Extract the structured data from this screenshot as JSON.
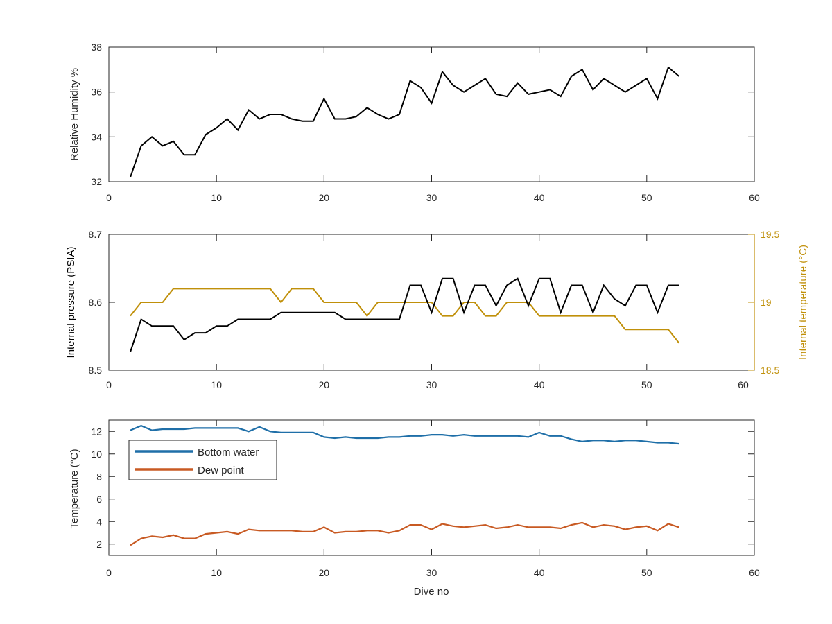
{
  "colors": {
    "axes": "#262626",
    "relative_humidity": "#000000",
    "internal_pressure": "#000000",
    "internal_temperature": "#c0900a",
    "bottom_water": "#1f6fa8",
    "dew_point": "#c85a23"
  },
  "chart_data": [
    {
      "type": "line",
      "xlabel": "",
      "ylabel": "Relative Humidity %",
      "xlim": [
        0,
        60
      ],
      "ylim": [
        32,
        38
      ],
      "xticks": [
        "0",
        "10",
        "20",
        "30",
        "40",
        "50",
        "60"
      ],
      "yticks": [
        "32",
        "34",
        "36",
        "38"
      ],
      "grid": false,
      "series": [
        {
          "color_key": "relative_humidity",
          "x": [
            2,
            3,
            4,
            5,
            6,
            7,
            8,
            9,
            10,
            11,
            12,
            13,
            14,
            15,
            16,
            17,
            18,
            19,
            20,
            21,
            22,
            23,
            24,
            25,
            26,
            27,
            28,
            29,
            30,
            31,
            32,
            33,
            34,
            35,
            36,
            37,
            38,
            39,
            40,
            41,
            42,
            43,
            44,
            45,
            46,
            47,
            48,
            49,
            50,
            51,
            52,
            53
          ],
          "y": [
            32.2,
            33.6,
            34.0,
            33.6,
            33.8,
            33.2,
            33.2,
            34.1,
            34.4,
            34.8,
            34.3,
            35.2,
            34.8,
            35.0,
            35.0,
            34.8,
            34.7,
            34.7,
            35.7,
            34.8,
            34.8,
            34.9,
            35.3,
            35.0,
            34.8,
            35.0,
            36.5,
            36.2,
            35.5,
            36.9,
            36.3,
            36.0,
            36.3,
            36.6,
            35.9,
            35.8,
            36.4,
            35.9,
            36.0,
            36.1,
            35.8,
            36.7,
            37.0,
            36.1,
            36.6,
            36.3,
            36.0,
            36.3,
            36.6,
            35.7,
            37.1,
            36.7
          ]
        }
      ]
    },
    {
      "type": "line",
      "xlabel": "",
      "ylabel": "Internal pressure (PSIA)",
      "y2label": "Internal temperature (°C)",
      "xlim": [
        0,
        60
      ],
      "ylim": [
        8.5,
        8.7
      ],
      "y2lim": [
        18.5,
        19.5
      ],
      "xticks": [
        "0",
        "10",
        "20",
        "30",
        "40",
        "50",
        "60"
      ],
      "yticks": [
        "8.5",
        "8.6",
        "8.7"
      ],
      "y2ticks": [
        "18.5",
        "19",
        "19.5"
      ],
      "grid": false,
      "series": [
        {
          "axis": "left",
          "color_key": "internal_pressure",
          "x": [
            2,
            3,
            4,
            5,
            6,
            7,
            8,
            9,
            10,
            11,
            12,
            13,
            14,
            15,
            16,
            17,
            18,
            19,
            20,
            21,
            22,
            23,
            24,
            25,
            26,
            27,
            28,
            29,
            30,
            31,
            32,
            33,
            34,
            35,
            36,
            37,
            38,
            39,
            40,
            41,
            42,
            43,
            44,
            45,
            46,
            47,
            48,
            49,
            50,
            51,
            52,
            53
          ],
          "y": [
            8.527,
            8.575,
            8.565,
            8.565,
            8.565,
            8.545,
            8.555,
            8.555,
            8.565,
            8.565,
            8.575,
            8.575,
            8.575,
            8.575,
            8.585,
            8.585,
            8.585,
            8.585,
            8.585,
            8.585,
            8.575,
            8.575,
            8.575,
            8.575,
            8.575,
            8.575,
            8.625,
            8.625,
            8.585,
            8.635,
            8.635,
            8.585,
            8.625,
            8.625,
            8.595,
            8.625,
            8.635,
            8.595,
            8.635,
            8.635,
            8.585,
            8.625,
            8.625,
            8.585,
            8.625,
            8.605,
            8.595,
            8.625,
            8.625,
            8.585,
            8.625,
            8.625
          ]
        },
        {
          "axis": "right",
          "color_key": "internal_temperature",
          "x": [
            2,
            3,
            4,
            5,
            6,
            7,
            8,
            9,
            10,
            11,
            12,
            13,
            14,
            15,
            16,
            17,
            18,
            19,
            20,
            21,
            22,
            23,
            24,
            25,
            26,
            27,
            28,
            29,
            30,
            31,
            32,
            33,
            34,
            35,
            36,
            37,
            38,
            39,
            40,
            41,
            42,
            43,
            44,
            45,
            46,
            47,
            48,
            49,
            50,
            51,
            52,
            53
          ],
          "y": [
            18.9,
            19.0,
            19.0,
            19.0,
            19.1,
            19.1,
            19.1,
            19.1,
            19.1,
            19.1,
            19.1,
            19.1,
            19.1,
            19.1,
            19.0,
            19.1,
            19.1,
            19.1,
            19.0,
            19.0,
            19.0,
            19.0,
            18.9,
            19.0,
            19.0,
            19.0,
            19.0,
            19.0,
            19.0,
            18.9,
            18.9,
            19.0,
            19.0,
            18.9,
            18.9,
            19.0,
            19.0,
            19.0,
            18.9,
            18.9,
            18.9,
            18.9,
            18.9,
            18.9,
            18.9,
            18.9,
            18.8,
            18.8,
            18.8,
            18.8,
            18.8,
            18.7
          ]
        }
      ]
    },
    {
      "type": "line",
      "xlabel": "Dive no",
      "ylabel": "Temperature (°C)",
      "xlim": [
        0,
        60
      ],
      "ylim": [
        1,
        13
      ],
      "xticks": [
        "0",
        "10",
        "20",
        "30",
        "40",
        "50",
        "60"
      ],
      "yticks": [
        "2",
        "4",
        "6",
        "8",
        "10",
        "12"
      ],
      "grid": false,
      "legend": "top-left",
      "series": [
        {
          "name": "Bottom water",
          "color_key": "bottom_water",
          "x": [
            2,
            3,
            4,
            5,
            6,
            7,
            8,
            9,
            10,
            11,
            12,
            13,
            14,
            15,
            16,
            17,
            18,
            19,
            20,
            21,
            22,
            23,
            24,
            25,
            26,
            27,
            28,
            29,
            30,
            31,
            32,
            33,
            34,
            35,
            36,
            37,
            38,
            39,
            40,
            41,
            42,
            43,
            44,
            45,
            46,
            47,
            48,
            49,
            50,
            51,
            52,
            53
          ],
          "y": [
            12.1,
            12.5,
            12.1,
            12.2,
            12.2,
            12.2,
            12.3,
            12.3,
            12.3,
            12.3,
            12.3,
            12.0,
            12.4,
            12.0,
            11.9,
            11.9,
            11.9,
            11.9,
            11.5,
            11.4,
            11.5,
            11.4,
            11.4,
            11.4,
            11.5,
            11.5,
            11.6,
            11.6,
            11.7,
            11.7,
            11.6,
            11.7,
            11.6,
            11.6,
            11.6,
            11.6,
            11.6,
            11.5,
            11.9,
            11.6,
            11.6,
            11.3,
            11.1,
            11.2,
            11.2,
            11.1,
            11.2,
            11.2,
            11.1,
            11.0,
            11.0,
            10.9
          ]
        },
        {
          "name": "Dew point",
          "color_key": "dew_point",
          "x": [
            2,
            3,
            4,
            5,
            6,
            7,
            8,
            9,
            10,
            11,
            12,
            13,
            14,
            15,
            16,
            17,
            18,
            19,
            20,
            21,
            22,
            23,
            24,
            25,
            26,
            27,
            28,
            29,
            30,
            31,
            32,
            33,
            34,
            35,
            36,
            37,
            38,
            39,
            40,
            41,
            42,
            43,
            44,
            45,
            46,
            47,
            48,
            49,
            50,
            51,
            52,
            53
          ],
          "y": [
            1.9,
            2.5,
            2.7,
            2.6,
            2.8,
            2.5,
            2.5,
            2.9,
            3.0,
            3.1,
            2.9,
            3.3,
            3.2,
            3.2,
            3.2,
            3.2,
            3.1,
            3.1,
            3.5,
            3.0,
            3.1,
            3.1,
            3.2,
            3.2,
            3.0,
            3.2,
            3.7,
            3.7,
            3.3,
            3.8,
            3.6,
            3.5,
            3.6,
            3.7,
            3.4,
            3.5,
            3.7,
            3.5,
            3.5,
            3.5,
            3.4,
            3.7,
            3.9,
            3.5,
            3.7,
            3.6,
            3.3,
            3.5,
            3.6,
            3.2,
            3.8,
            3.5
          ]
        }
      ]
    }
  ]
}
